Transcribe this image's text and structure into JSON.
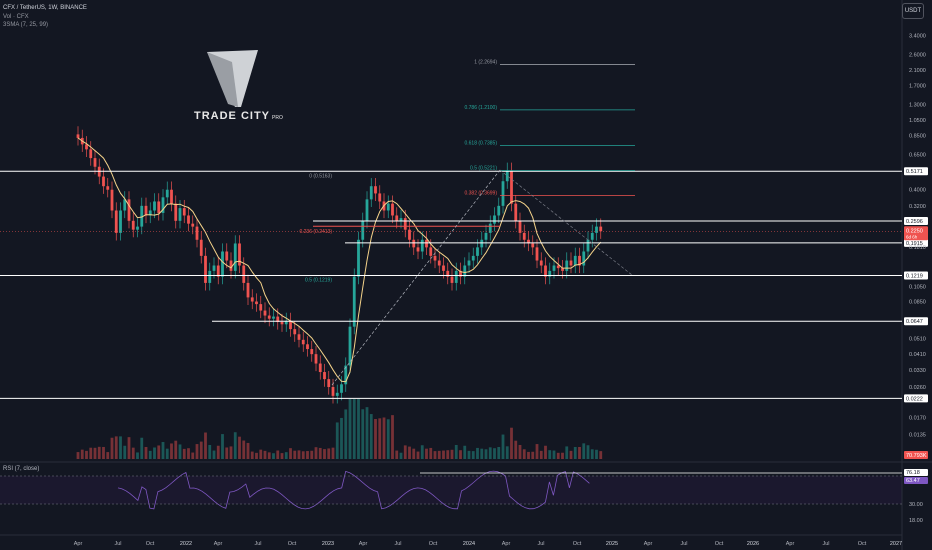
{
  "header": {
    "symbol_line": "CFX / TetherUS, 1W, BINANCE",
    "volume_line": "Vol · CFX",
    "sma_line": "3SMA (7, 25, 99)"
  },
  "currency_button": "USDT",
  "logo": {
    "text": "TRADE CITY",
    "suffix": "PRO"
  },
  "rsi_title": "RSI (7, close)",
  "chart_data": [
    {
      "type": "candlestick",
      "title": "CFX / TetherUS, 1W, BINANCE",
      "scale": "log",
      "y_ticks": [
        "3.4000",
        "2.6000",
        "2.1000",
        "1.7000",
        "1.3000",
        "1.0500",
        "0.8500",
        "0.6500",
        "0.4000",
        "0.3200",
        "0.1810",
        "0.1050",
        "0.0850",
        "0.0510",
        "0.0410",
        "0.0330",
        "0.0260",
        "0.0170",
        "0.0135"
      ],
      "x_ticks": [
        "Apr",
        "Jul",
        "Oct",
        "2022",
        "Apr",
        "Jul",
        "Oct",
        "2023",
        "Apr",
        "Jul",
        "Oct",
        "2024",
        "Apr",
        "Jul",
        "Oct",
        "2025",
        "Apr",
        "Jul",
        "Oct",
        "2026",
        "Apr",
        "Jul",
        "Oct",
        "2027"
      ],
      "price_levels": [
        {
          "label": "0.5171",
          "value": 0.5171,
          "color": "#ffffff"
        },
        {
          "label": "0.2596",
          "value": 0.2596,
          "color": "#ffffff"
        },
        {
          "label": "0.1915",
          "value": 0.1915,
          "color": "#ffffff"
        },
        {
          "label": "0.1219",
          "value": 0.1219,
          "color": "#ffffff"
        },
        {
          "label": "0.0647",
          "value": 0.0647,
          "color": "#ffffff"
        },
        {
          "label": "0.0222",
          "value": 0.0222,
          "color": "#ffffff"
        }
      ],
      "current_price": {
        "label": "0.2250",
        "value": 0.225,
        "countdown": "6d 6h"
      },
      "volume_label": "70.793K",
      "fib_levels": [
        {
          "label": "1 (2.2694)",
          "value": 2.2694,
          "color": "#9598a1"
        },
        {
          "label": "0.786 (1.2100)",
          "value": 1.21,
          "color": "#26a69a"
        },
        {
          "label": "0.618 (0.7385)",
          "value": 0.7385,
          "color": "#26a69a"
        },
        {
          "label": "0.5 (0.5221)",
          "value": 0.5221,
          "color": "#26a69a"
        },
        {
          "label": "0.382 (0.3699)",
          "value": 0.3699,
          "color": "#ef5350"
        },
        {
          "label": "0.236 (0.2413)",
          "value": 0.2413,
          "color": "#ef5350"
        },
        {
          "label": "0 (0.5163)",
          "value": 0.5163,
          "color": "#9598a1"
        },
        {
          "label": "0.5 (0.1219)",
          "value": 0.1219,
          "color": "#26a69a"
        }
      ],
      "closes": [
        0.82,
        0.75,
        0.7,
        0.62,
        0.55,
        0.48,
        0.42,
        0.4,
        0.3,
        0.22,
        0.3,
        0.35,
        0.26,
        0.23,
        0.24,
        0.32,
        0.28,
        0.3,
        0.34,
        0.29,
        0.36,
        0.4,
        0.33,
        0.26,
        0.31,
        0.28,
        0.25,
        0.24,
        0.2,
        0.16,
        0.11,
        0.13,
        0.14,
        0.12,
        0.17,
        0.15,
        0.13,
        0.19,
        0.14,
        0.11,
        0.09,
        0.085,
        0.082,
        0.075,
        0.07,
        0.067,
        0.069,
        0.064,
        0.062,
        0.065,
        0.058,
        0.054,
        0.05,
        0.047,
        0.044,
        0.041,
        0.036,
        0.032,
        0.029,
        0.026,
        0.023,
        0.024,
        0.027,
        0.035,
        0.06,
        0.12,
        0.2,
        0.26,
        0.35,
        0.42,
        0.38,
        0.34,
        0.3,
        0.33,
        0.28,
        0.26,
        0.27,
        0.23,
        0.2,
        0.18,
        0.17,
        0.2,
        0.18,
        0.16,
        0.15,
        0.14,
        0.13,
        0.12,
        0.11,
        0.13,
        0.12,
        0.14,
        0.15,
        0.16,
        0.18,
        0.2,
        0.22,
        0.25,
        0.28,
        0.32,
        0.45,
        0.52,
        0.33,
        0.26,
        0.22,
        0.2,
        0.19,
        0.18,
        0.15,
        0.14,
        0.12,
        0.13,
        0.14,
        0.135,
        0.13,
        0.15,
        0.14,
        0.16,
        0.14,
        0.17,
        0.2,
        0.22,
        0.24,
        0.225
      ],
      "rsi": {
        "labels": [
          "76.18",
          "63.47",
          "30.00",
          "18.00"
        ],
        "levels": [
          70,
          30
        ],
        "last": 63.47
      }
    }
  ]
}
